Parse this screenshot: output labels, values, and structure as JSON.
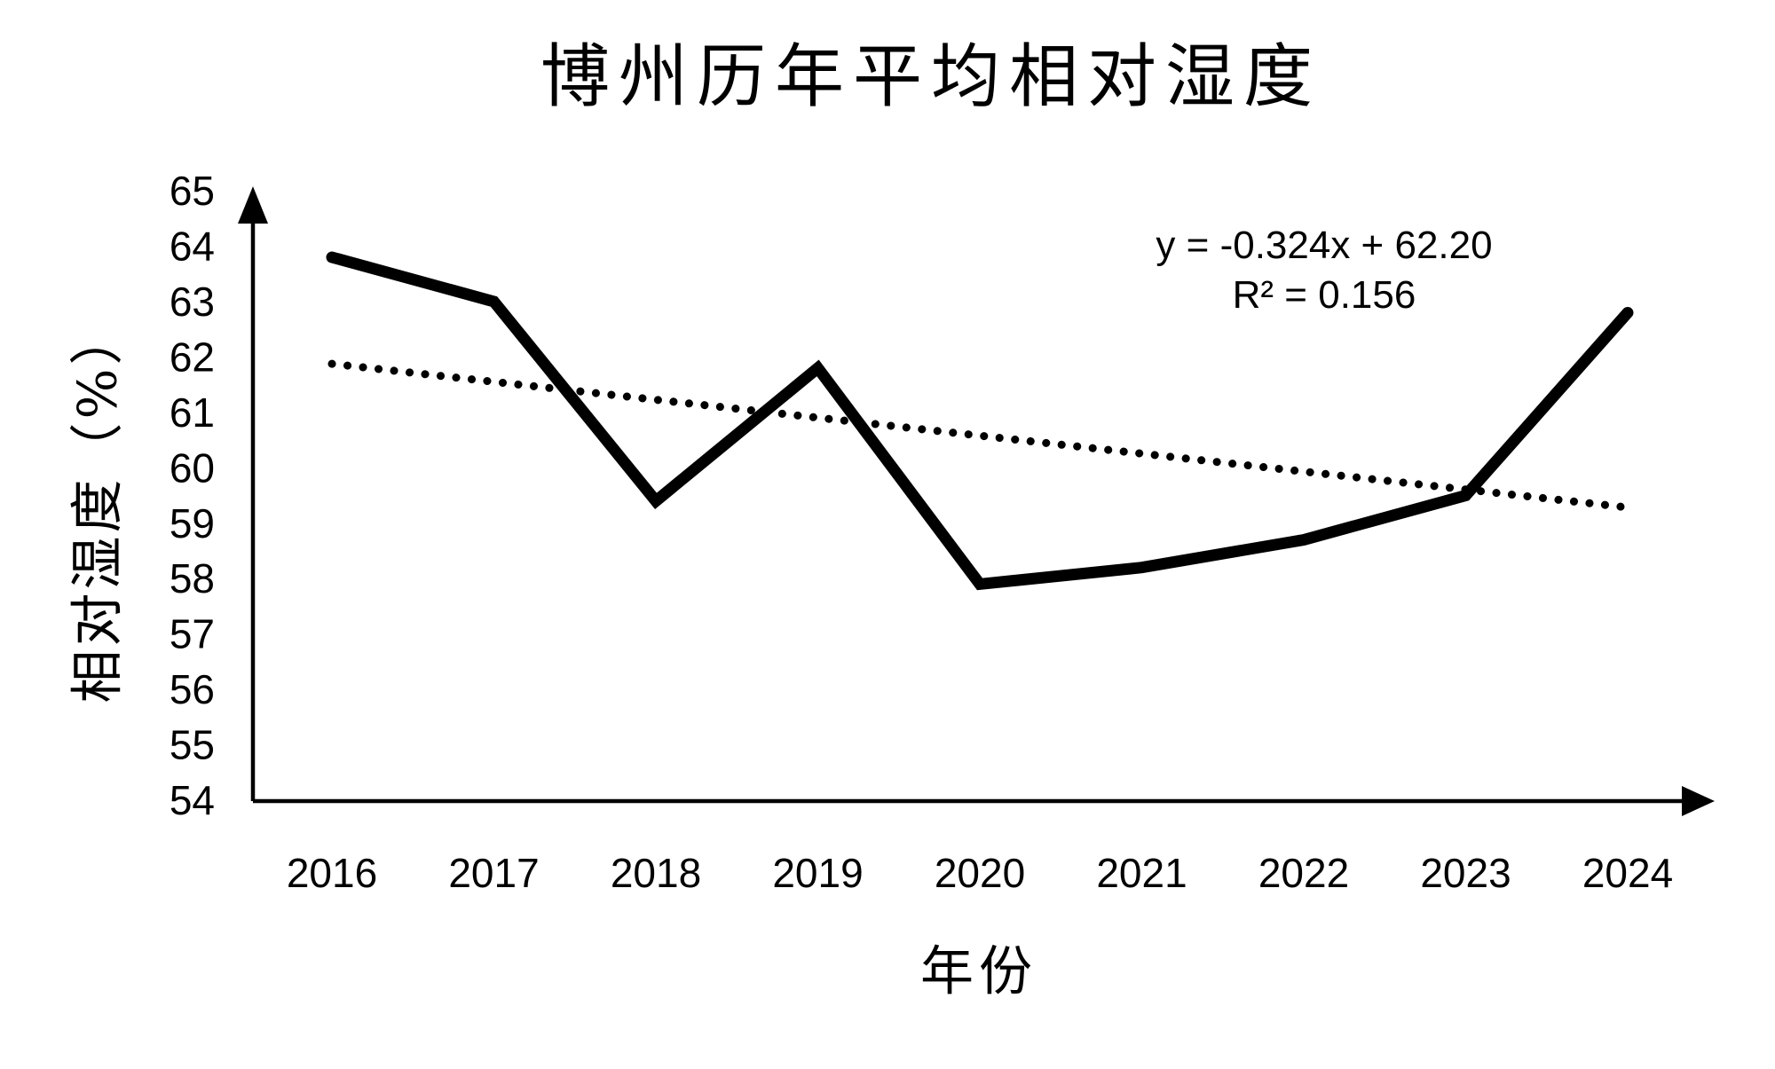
{
  "title": "博州历年平均相对湿度",
  "chart_data": {
    "type": "line",
    "title": "博州历年平均相对湿度",
    "xlabel": "年份",
    "ylabel": "相对湿度（%）",
    "categories": [
      "2016",
      "2017",
      "2018",
      "2019",
      "2020",
      "2021",
      "2022",
      "2023",
      "2024"
    ],
    "values": [
      63.8,
      63.0,
      59.4,
      61.8,
      57.9,
      58.2,
      58.7,
      59.5,
      62.8
    ],
    "y_ticks": [
      65,
      64,
      63,
      62,
      61,
      60,
      59,
      58,
      57,
      56,
      55,
      54
    ],
    "ylim": [
      54,
      65
    ],
    "grid": false,
    "legend": false,
    "line_color": "#000000",
    "background_color": "#ffffff",
    "trendline": {
      "style": "dotted",
      "slope": -0.324,
      "intercept": 62.2,
      "label": "y = -0.324x + 62.20",
      "r2_label": "R² = 0.156",
      "r2": 0.156
    }
  }
}
